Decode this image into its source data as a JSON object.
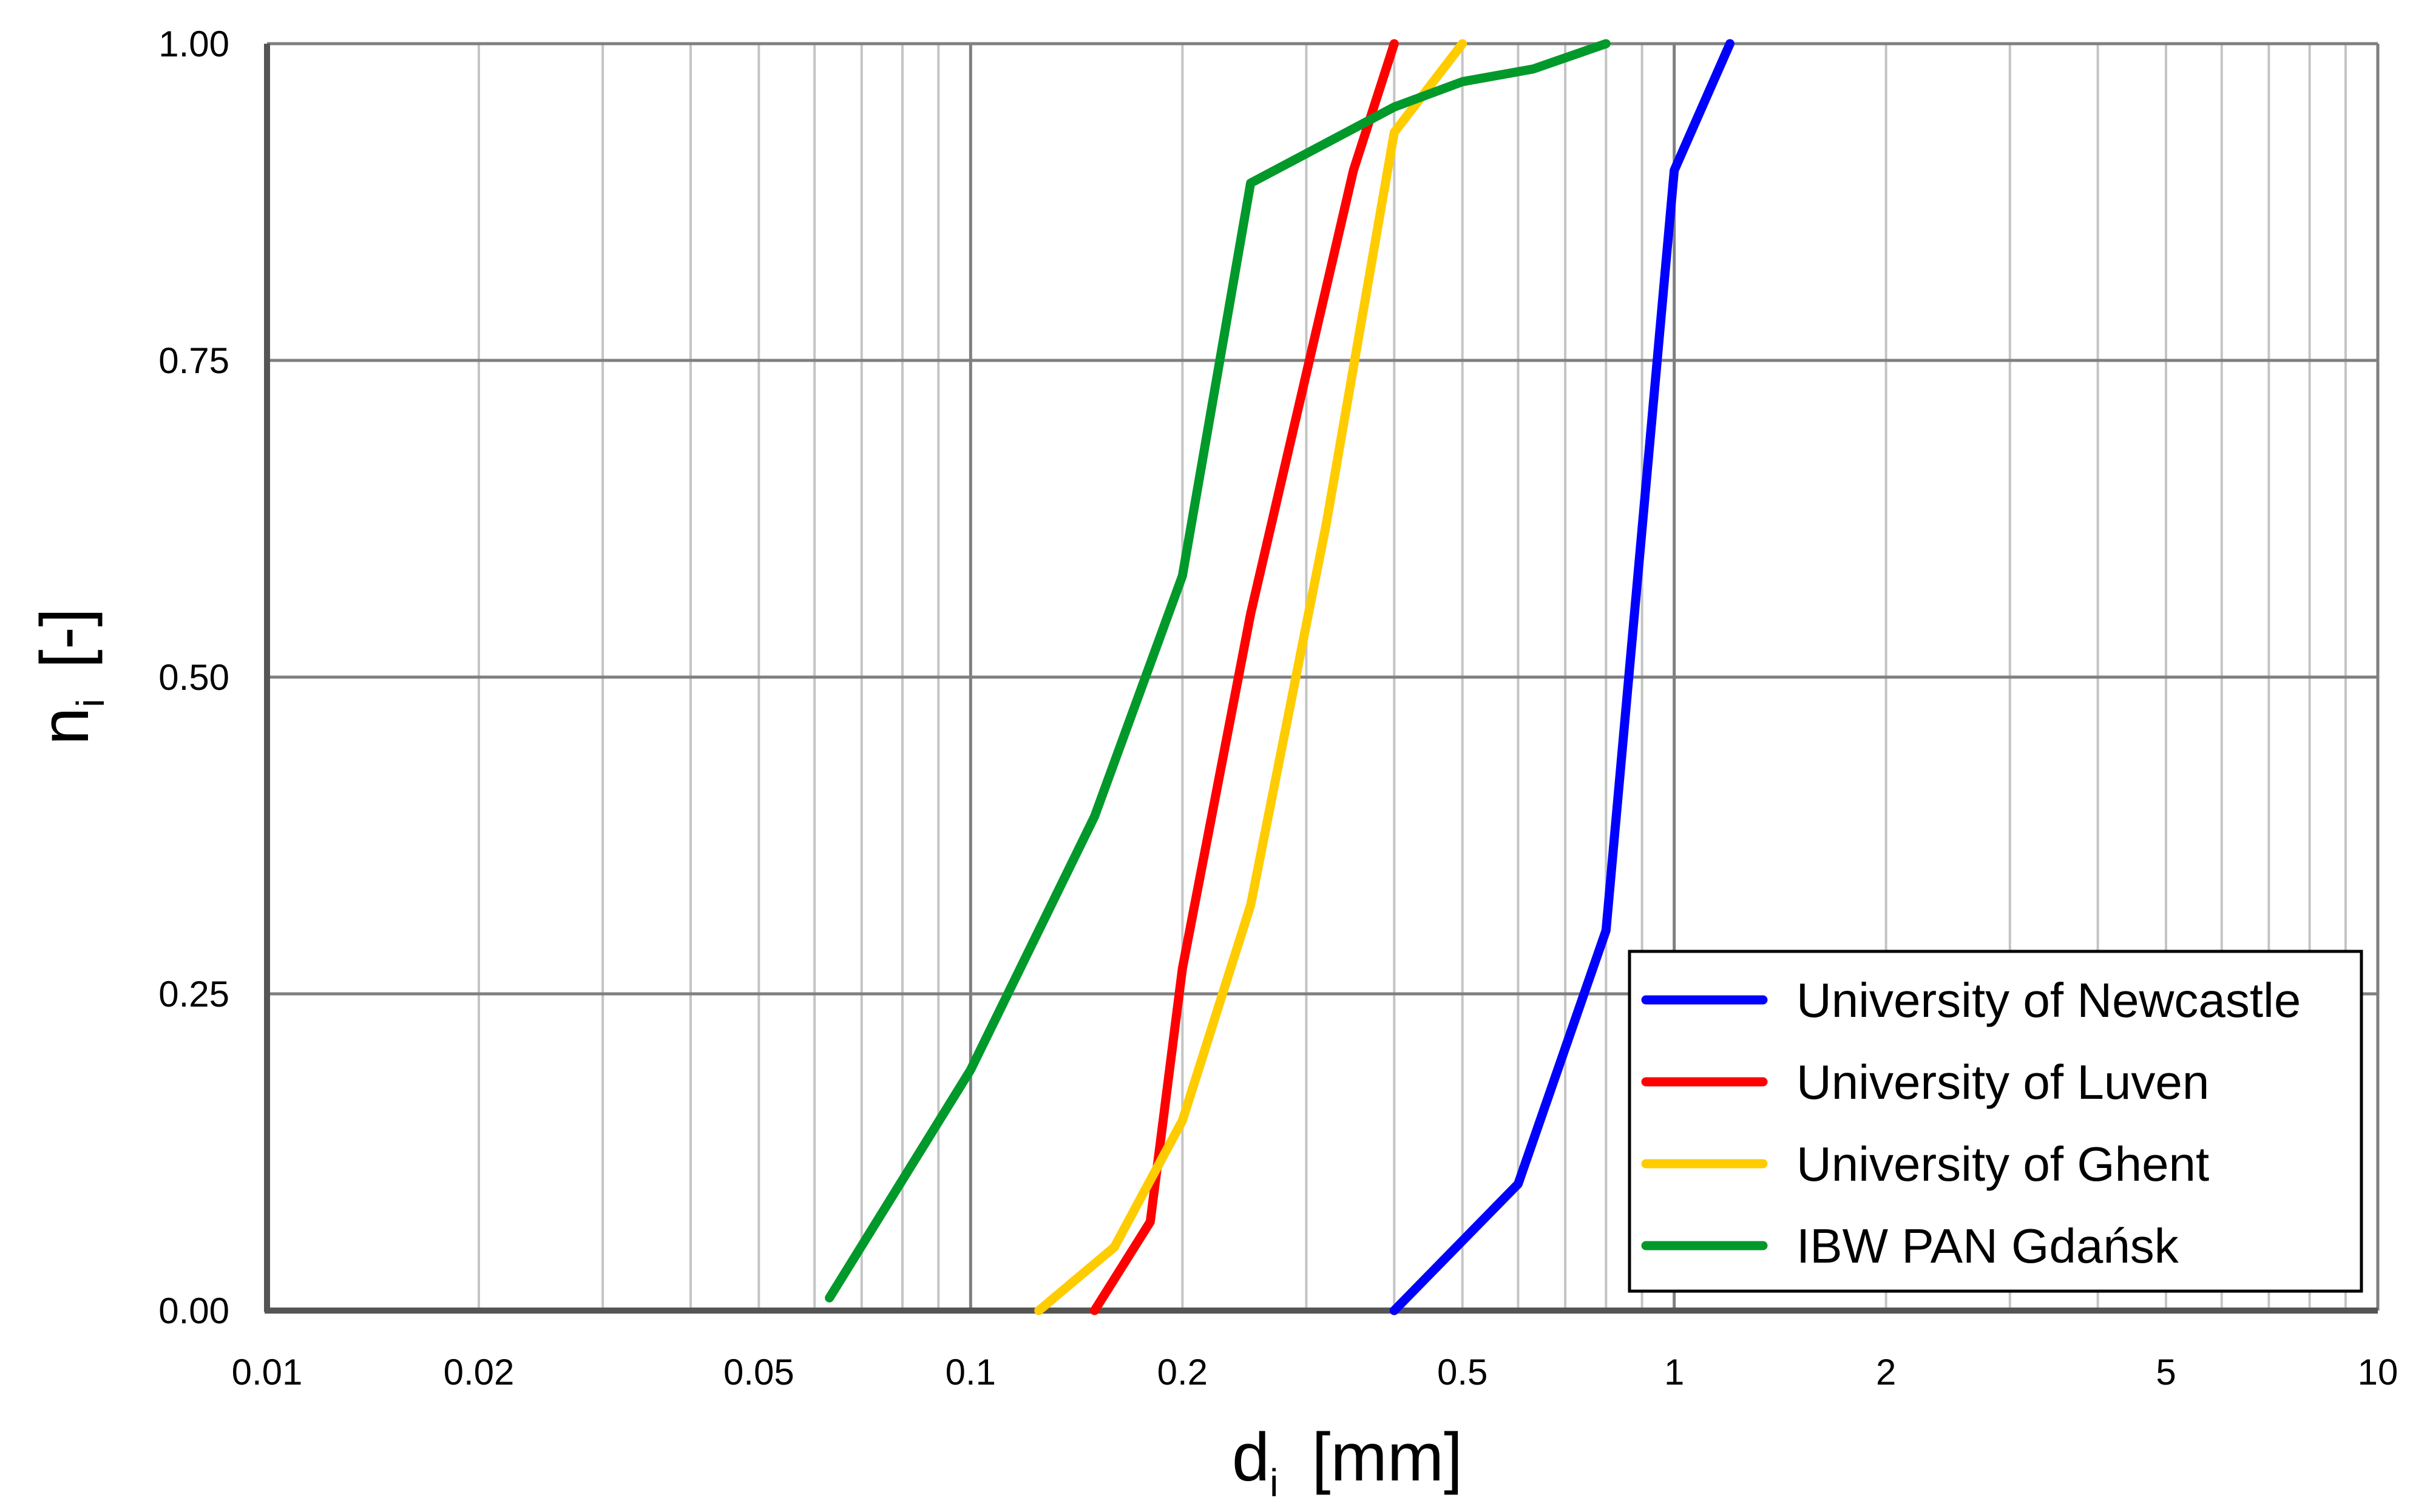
{
  "chart_data": {
    "type": "line",
    "x_scale": "log",
    "xlim": [
      0.01,
      10
    ],
    "ylim": [
      0,
      1
    ],
    "xlabel": {
      "main": "d",
      "sub": "i",
      "unit": "[mm]"
    },
    "ylabel": {
      "main": "n",
      "sub": "i",
      "unit": "[-]"
    },
    "x_ticks": [
      {
        "value": 0.01,
        "label": "0.01"
      },
      {
        "value": 0.02,
        "label": "0.02"
      },
      {
        "value": 0.05,
        "label": "0.05"
      },
      {
        "value": 0.1,
        "label": "0.1"
      },
      {
        "value": 0.2,
        "label": "0.2"
      },
      {
        "value": 0.5,
        "label": "0.5"
      },
      {
        "value": 1,
        "label": "1"
      },
      {
        "value": 2,
        "label": "2"
      },
      {
        "value": 5,
        "label": "5"
      },
      {
        "value": 10,
        "label": "10"
      }
    ],
    "y_ticks": [
      {
        "value": 0,
        "label": "0.00"
      },
      {
        "value": 0.25,
        "label": "0.25"
      },
      {
        "value": 0.5,
        "label": "0.50"
      },
      {
        "value": 0.75,
        "label": "0.75"
      },
      {
        "value": 1,
        "label": "1.00"
      }
    ],
    "grid": true,
    "legend_position": "bottom-right",
    "series": [
      {
        "name": "University of Newcastle",
        "color": "#0000ff",
        "points": [
          [
            0.4,
            0.0
          ],
          [
            0.6,
            0.1
          ],
          [
            0.8,
            0.3
          ],
          [
            1.0,
            0.9
          ],
          [
            1.2,
            1.0
          ]
        ]
      },
      {
        "name": "University of Luven",
        "color": "#ff0000",
        "points": [
          [
            0.15,
            0.0
          ],
          [
            0.18,
            0.07
          ],
          [
            0.2,
            0.27
          ],
          [
            0.25,
            0.55
          ],
          [
            0.35,
            0.9
          ],
          [
            0.4,
            1.0
          ]
        ]
      },
      {
        "name": "University of Ghent",
        "color": "#ffcc00",
        "points": [
          [
            0.125,
            0.0
          ],
          [
            0.16,
            0.05
          ],
          [
            0.2,
            0.15
          ],
          [
            0.25,
            0.32
          ],
          [
            0.32,
            0.62
          ],
          [
            0.4,
            0.93
          ],
          [
            0.5,
            1.0
          ]
        ]
      },
      {
        "name": "IBW PAN Gdańsk",
        "color": "#00992a",
        "points": [
          [
            0.063,
            0.01
          ],
          [
            0.1,
            0.19
          ],
          [
            0.15,
            0.39
          ],
          [
            0.2,
            0.58
          ],
          [
            0.25,
            0.89
          ],
          [
            0.4,
            0.95
          ],
          [
            0.5,
            0.97
          ],
          [
            0.63,
            0.98
          ],
          [
            0.8,
            1.0
          ]
        ]
      }
    ]
  }
}
